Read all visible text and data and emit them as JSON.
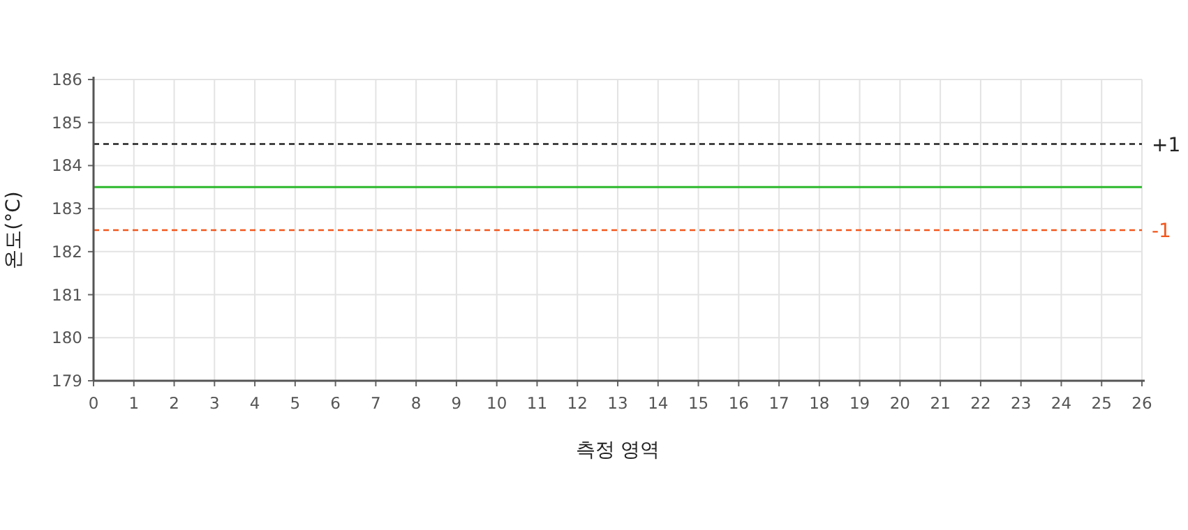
{
  "chart_data": {
    "type": "line",
    "xlabel": "측정 영역",
    "ylabel": "온도(°C)",
    "xlim": [
      0,
      26
    ],
    "xticks": [
      0,
      1,
      2,
      3,
      4,
      5,
      6,
      7,
      8,
      9,
      10,
      11,
      12,
      13,
      14,
      15,
      16,
      17,
      18,
      19,
      20,
      21,
      22,
      23,
      24,
      25,
      26
    ],
    "ylim": [
      179,
      186
    ],
    "yticks": [
      179,
      180,
      181,
      182,
      183,
      184,
      185,
      186
    ],
    "grid": true,
    "series": [
      {
        "color": "#2db92d",
        "x": [
          0,
          26
        ],
        "values": [
          183.5,
          183.5
        ]
      }
    ],
    "ref_lines": [
      {
        "axis": "y",
        "value": 184.5,
        "color": "#222222",
        "line_style": "dashed"
      },
      {
        "axis": "y",
        "value": 182.5,
        "color": "#f2571c",
        "line_style": "dashed"
      }
    ],
    "annotations": [
      {
        "text": "+1",
        "x": 26,
        "y": 184.5
      },
      {
        "text": "-1",
        "x": 26,
        "y": 182.5
      }
    ]
  }
}
